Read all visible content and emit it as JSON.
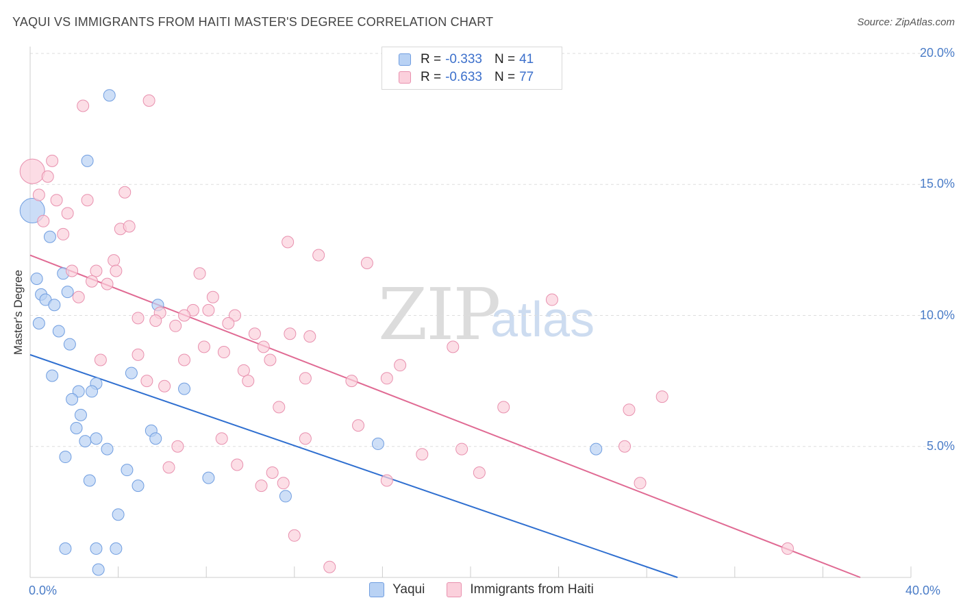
{
  "title": "YAQUI VS IMMIGRANTS FROM HAITI MASTER'S DEGREE CORRELATION CHART",
  "source": "Source: ZipAtlas.com",
  "watermark": {
    "zip": "ZIP",
    "atlas": "atlas"
  },
  "stats": {
    "yaqui": {
      "r_label": "R =",
      "r_value": "-0.333",
      "n_label": "N =",
      "n_value": "41"
    },
    "haiti": {
      "r_label": "R =",
      "r_value": "-0.633",
      "n_label": "N =",
      "n_value": "77"
    }
  },
  "legend": {
    "yaqui": "Yaqui",
    "haiti": "Immigrants from Haiti"
  },
  "colors": {
    "blue_fill": "#b9d2f4",
    "blue_stroke": "#6f9de0",
    "blue_line": "#2f6fd0",
    "pink_fill": "#fbd0dc",
    "pink_stroke": "#e890ae",
    "pink_line": "#e06a93",
    "grid": "#dddddd",
    "tick_text": "#4a7cc7"
  },
  "chart_data": {
    "type": "scatter",
    "title": "YAQUI VS IMMIGRANTS FROM HAITI MASTER'S DEGREE CORRELATION CHART",
    "xlabel": "",
    "ylabel": "Master's Degree",
    "xlim": [
      0,
      40
    ],
    "ylim": [
      0,
      20
    ],
    "y_ticks": [
      {
        "value": 5,
        "label": "5.0%"
      },
      {
        "value": 10,
        "label": "10.0%"
      },
      {
        "value": 15,
        "label": "15.0%"
      },
      {
        "value": 20,
        "label": "20.0%"
      }
    ],
    "x_tick_labels": [
      {
        "value": 0,
        "label": "0.0%"
      },
      {
        "value": 40,
        "label": "40.0%"
      }
    ],
    "series": [
      {
        "name": "Yaqui",
        "color": "blue",
        "trend": {
          "x0": 0,
          "y0": 8.5,
          "x1": 29.4,
          "y1": 0
        },
        "points": [
          [
            0.1,
            14.0,
            "large"
          ],
          [
            3.6,
            18.4
          ],
          [
            2.6,
            15.9
          ],
          [
            0.9,
            13.0
          ],
          [
            0.3,
            11.4
          ],
          [
            1.5,
            11.6
          ],
          [
            0.5,
            10.8
          ],
          [
            1.7,
            10.9
          ],
          [
            0.7,
            10.6
          ],
          [
            1.1,
            10.4
          ],
          [
            5.8,
            10.4
          ],
          [
            0.4,
            9.7
          ],
          [
            1.3,
            9.4
          ],
          [
            1.8,
            8.9
          ],
          [
            4.6,
            7.8
          ],
          [
            1.0,
            7.7
          ],
          [
            3.0,
            7.4
          ],
          [
            2.2,
            7.1
          ],
          [
            2.8,
            7.1
          ],
          [
            7.0,
            7.2
          ],
          [
            1.9,
            6.8
          ],
          [
            2.3,
            6.2
          ],
          [
            2.1,
            5.7
          ],
          [
            5.5,
            5.6
          ],
          [
            2.5,
            5.2
          ],
          [
            3.0,
            5.3
          ],
          [
            5.7,
            5.3
          ],
          [
            15.8,
            5.1
          ],
          [
            3.5,
            4.9
          ],
          [
            25.7,
            4.9
          ],
          [
            1.6,
            4.6
          ],
          [
            4.4,
            4.1
          ],
          [
            2.7,
            3.7
          ],
          [
            8.1,
            3.8
          ],
          [
            4.9,
            3.5
          ],
          [
            11.6,
            3.1
          ],
          [
            4.0,
            2.4
          ],
          [
            3.0,
            1.1
          ],
          [
            3.9,
            1.1
          ],
          [
            3.1,
            0.3
          ],
          [
            1.6,
            1.1
          ]
        ]
      },
      {
        "name": "Immigrants from Haiti",
        "color": "pink",
        "trend": {
          "x0": 0,
          "y0": 12.3,
          "x1": 37.7,
          "y1": 0
        },
        "points": [
          [
            2.4,
            18.0
          ],
          [
            5.4,
            18.2
          ],
          [
            0.1,
            15.5,
            "large"
          ],
          [
            1.0,
            15.9
          ],
          [
            0.8,
            15.3
          ],
          [
            0.4,
            14.6
          ],
          [
            1.2,
            14.4
          ],
          [
            2.6,
            14.4
          ],
          [
            4.3,
            14.7
          ],
          [
            0.6,
            13.6
          ],
          [
            1.7,
            13.9
          ],
          [
            4.1,
            13.3
          ],
          [
            4.5,
            13.4
          ],
          [
            1.5,
            13.1
          ],
          [
            11.7,
            12.8
          ],
          [
            13.1,
            12.3
          ],
          [
            15.3,
            12.0
          ],
          [
            3.8,
            12.1
          ],
          [
            1.9,
            11.7
          ],
          [
            3.0,
            11.7
          ],
          [
            3.9,
            11.7
          ],
          [
            7.7,
            11.6
          ],
          [
            2.8,
            11.3
          ],
          [
            3.5,
            11.2
          ],
          [
            2.2,
            10.7
          ],
          [
            8.3,
            10.7
          ],
          [
            23.7,
            10.6
          ],
          [
            7.4,
            10.2
          ],
          [
            8.1,
            10.2
          ],
          [
            5.9,
            10.1
          ],
          [
            7.0,
            10.0
          ],
          [
            9.3,
            10.0
          ],
          [
            4.9,
            9.9
          ],
          [
            5.7,
            9.8
          ],
          [
            6.6,
            9.6
          ],
          [
            9.0,
            9.7
          ],
          [
            10.2,
            9.3
          ],
          [
            11.8,
            9.3
          ],
          [
            12.7,
            9.2
          ],
          [
            7.9,
            8.8
          ],
          [
            10.6,
            8.8
          ],
          [
            8.8,
            8.6
          ],
          [
            19.2,
            8.8
          ],
          [
            4.9,
            8.5
          ],
          [
            3.2,
            8.3
          ],
          [
            7.0,
            8.3
          ],
          [
            10.9,
            8.3
          ],
          [
            16.8,
            8.1
          ],
          [
            9.7,
            7.9
          ],
          [
            12.5,
            7.6
          ],
          [
            16.2,
            7.6
          ],
          [
            5.3,
            7.5
          ],
          [
            9.9,
            7.5
          ],
          [
            14.6,
            7.5
          ],
          [
            6.1,
            7.3
          ],
          [
            28.7,
            6.9
          ],
          [
            11.3,
            6.5
          ],
          [
            21.5,
            6.5
          ],
          [
            27.2,
            6.4
          ],
          [
            14.9,
            5.8
          ],
          [
            12.5,
            5.3
          ],
          [
            8.7,
            5.3
          ],
          [
            6.7,
            5.0
          ],
          [
            27.0,
            5.0
          ],
          [
            19.6,
            4.9
          ],
          [
            17.8,
            4.7
          ],
          [
            9.4,
            4.3
          ],
          [
            6.3,
            4.2
          ],
          [
            11.0,
            4.0
          ],
          [
            20.4,
            4.0
          ],
          [
            16.2,
            3.7
          ],
          [
            27.7,
            3.6
          ],
          [
            10.5,
            3.5
          ],
          [
            11.5,
            3.6
          ],
          [
            12.0,
            1.6
          ],
          [
            34.4,
            1.1
          ],
          [
            13.6,
            0.4
          ]
        ]
      }
    ]
  }
}
